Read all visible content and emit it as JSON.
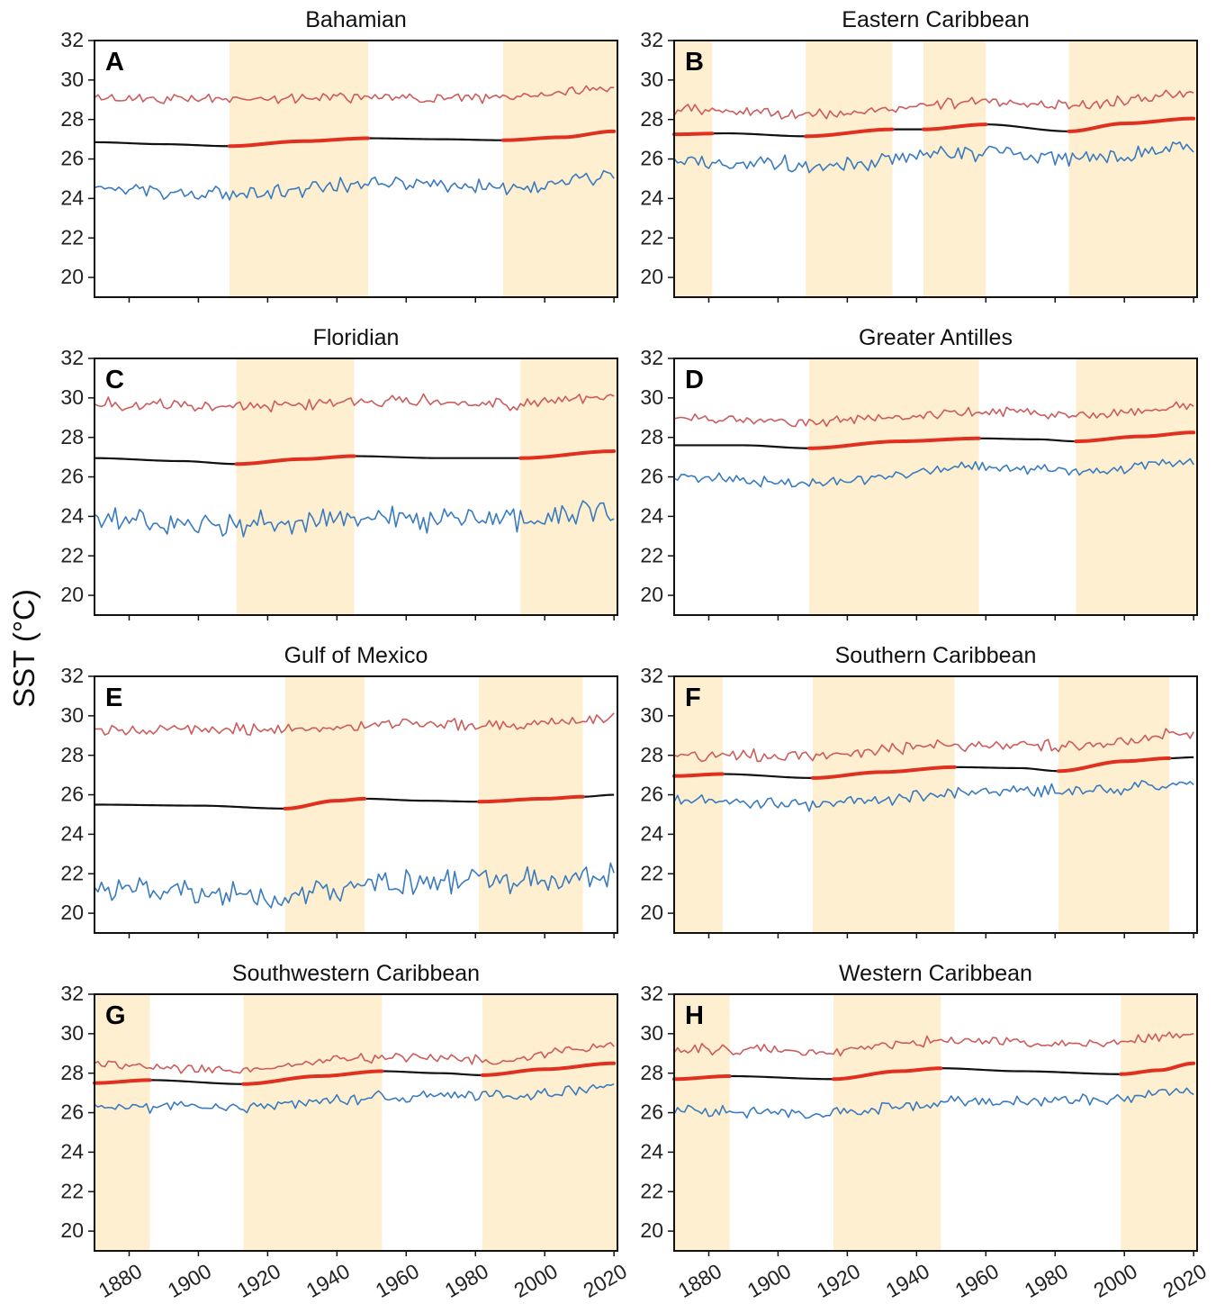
{
  "ylabel": "SST (°C)",
  "colors": {
    "shade": "#fdefcf",
    "max": "#cd5c5c",
    "min": "#3a7bbf",
    "trend": "#111111",
    "trend_highlight": "#e03020",
    "frame": "#111111"
  },
  "chart_data": [
    {
      "type": "line",
      "letter": "A",
      "title": "Bahamian",
      "xlim": [
        1870,
        2021
      ],
      "ylim": [
        19,
        32
      ],
      "yticks": [
        20,
        22,
        24,
        26,
        28,
        30,
        32
      ],
      "xticks": [
        1880,
        1900,
        1920,
        1940,
        1960,
        1980,
        2000,
        2020
      ],
      "shaded_periods": [
        [
          1909,
          1949
        ],
        [
          1988,
          2021
        ]
      ],
      "series": [
        {
          "role": "max",
          "base": [
            [
              1870,
              29.1
            ],
            [
              1900,
              29.0
            ],
            [
              1940,
              29.1
            ],
            [
              1980,
              29.1
            ],
            [
              2020,
              29.5
            ]
          ],
          "amplitude": 0.3
        },
        {
          "role": "trend",
          "points": [
            [
              1870,
              26.85
            ],
            [
              1890,
              26.75
            ],
            [
              1909,
              26.65
            ],
            [
              1930,
              26.9
            ],
            [
              1949,
              27.05
            ],
            [
              1970,
              27.0
            ],
            [
              1988,
              26.95
            ],
            [
              2005,
              27.1
            ],
            [
              2020,
              27.4
            ]
          ]
        },
        {
          "role": "min",
          "base": [
            [
              1870,
              24.5
            ],
            [
              1910,
              24.2
            ],
            [
              1950,
              24.8
            ],
            [
              1990,
              24.6
            ],
            [
              2020,
              25.1
            ]
          ],
          "amplitude": 0.45
        }
      ]
    },
    {
      "type": "line",
      "letter": "B",
      "title": "Eastern Caribbean",
      "xlim": [
        1870,
        2021
      ],
      "ylim": [
        19,
        32
      ],
      "yticks": [
        20,
        22,
        24,
        26,
        28,
        30,
        32
      ],
      "xticks": [
        1880,
        1900,
        1920,
        1940,
        1960,
        1980,
        2000,
        2020
      ],
      "shaded_periods": [
        [
          1870,
          1881
        ],
        [
          1908,
          1933
        ],
        [
          1942,
          1960
        ],
        [
          1984,
          2021
        ]
      ],
      "series": [
        {
          "role": "max",
          "base": [
            [
              1870,
              28.5
            ],
            [
              1910,
              28.3
            ],
            [
              1960,
              28.9
            ],
            [
              1985,
              28.7
            ],
            [
              2020,
              29.3
            ]
          ],
          "amplitude": 0.35
        },
        {
          "role": "trend",
          "points": [
            [
              1870,
              27.25
            ],
            [
              1885,
              27.3
            ],
            [
              1908,
              27.15
            ],
            [
              1933,
              27.5
            ],
            [
              1942,
              27.5
            ],
            [
              1960,
              27.75
            ],
            [
              1984,
              27.4
            ],
            [
              2000,
              27.8
            ],
            [
              2020,
              28.05
            ]
          ]
        },
        {
          "role": "min",
          "base": [
            [
              1870,
              25.8
            ],
            [
              1910,
              25.7
            ],
            [
              1960,
              26.3
            ],
            [
              1990,
              26.0
            ],
            [
              2020,
              26.6
            ]
          ],
          "amplitude": 0.5
        }
      ]
    },
    {
      "type": "line",
      "letter": "C",
      "title": "Floridian",
      "xlim": [
        1870,
        2021
      ],
      "ylim": [
        19,
        32
      ],
      "yticks": [
        20,
        22,
        24,
        26,
        28,
        30,
        32
      ],
      "xticks": [
        1880,
        1900,
        1920,
        1940,
        1960,
        1980,
        2000,
        2020
      ],
      "shaded_periods": [
        [
          1911,
          1945
        ],
        [
          1993,
          2021
        ]
      ],
      "series": [
        {
          "role": "max",
          "base": [
            [
              1870,
              29.7
            ],
            [
              1910,
              29.5
            ],
            [
              1950,
              29.9
            ],
            [
              1990,
              29.7
            ],
            [
              2020,
              30.1
            ]
          ],
          "amplitude": 0.4
        },
        {
          "role": "trend",
          "points": [
            [
              1870,
              26.95
            ],
            [
              1895,
              26.8
            ],
            [
              1911,
              26.65
            ],
            [
              1930,
              26.9
            ],
            [
              1945,
              27.05
            ],
            [
              1970,
              26.95
            ],
            [
              1993,
              26.95
            ],
            [
              2020,
              27.3
            ]
          ]
        },
        {
          "role": "min",
          "base": [
            [
              1870,
              23.8
            ],
            [
              1910,
              23.6
            ],
            [
              1950,
              23.9
            ],
            [
              1990,
              23.8
            ],
            [
              2020,
              24.3
            ]
          ],
          "amplitude": 0.8
        }
      ]
    },
    {
      "type": "line",
      "letter": "D",
      "title": "Greater Antilles",
      "xlim": [
        1870,
        2021
      ],
      "ylim": [
        19,
        32
      ],
      "yticks": [
        20,
        22,
        24,
        26,
        28,
        30,
        32
      ],
      "xticks": [
        1880,
        1900,
        1920,
        1940,
        1960,
        1980,
        2000,
        2020
      ],
      "shaded_periods": [
        [
          1909,
          1958
        ],
        [
          1986,
          2021
        ]
      ],
      "series": [
        {
          "role": "max",
          "base": [
            [
              1870,
              29.0
            ],
            [
              1910,
              28.8
            ],
            [
              1960,
              29.3
            ],
            [
              1986,
              29.1
            ],
            [
              2020,
              29.6
            ]
          ],
          "amplitude": 0.3
        },
        {
          "role": "trend",
          "points": [
            [
              1870,
              27.6
            ],
            [
              1890,
              27.6
            ],
            [
              1909,
              27.45
            ],
            [
              1935,
              27.8
            ],
            [
              1958,
              27.95
            ],
            [
              1975,
              27.9
            ],
            [
              1986,
              27.8
            ],
            [
              2005,
              28.05
            ],
            [
              2020,
              28.25
            ]
          ]
        },
        {
          "role": "min",
          "base": [
            [
              1870,
              26.0
            ],
            [
              1910,
              25.7
            ],
            [
              1960,
              26.5
            ],
            [
              1990,
              26.3
            ],
            [
              2020,
              26.8
            ]
          ],
          "amplitude": 0.35
        }
      ]
    },
    {
      "type": "line",
      "letter": "E",
      "title": "Gulf of Mexico",
      "xlim": [
        1870,
        2021
      ],
      "ylim": [
        19,
        32
      ],
      "yticks": [
        20,
        22,
        24,
        26,
        28,
        30,
        32
      ],
      "xticks": [
        1880,
        1900,
        1920,
        1940,
        1960,
        1980,
        2000,
        2020
      ],
      "shaded_periods": [
        [
          1925,
          1948
        ],
        [
          1981,
          2011
        ]
      ],
      "series": [
        {
          "role": "max",
          "base": [
            [
              1870,
              29.3
            ],
            [
              1920,
              29.3
            ],
            [
              1960,
              29.6
            ],
            [
              1990,
              29.5
            ],
            [
              2020,
              29.9
            ]
          ],
          "amplitude": 0.35
        },
        {
          "role": "trend",
          "points": [
            [
              1870,
              25.5
            ],
            [
              1900,
              25.45
            ],
            [
              1925,
              25.3
            ],
            [
              1940,
              25.7
            ],
            [
              1948,
              25.8
            ],
            [
              1965,
              25.7
            ],
            [
              1981,
              25.65
            ],
            [
              2000,
              25.8
            ],
            [
              2011,
              25.9
            ],
            [
              2020,
              26.0
            ]
          ]
        },
        {
          "role": "min",
          "base": [
            [
              1870,
              21.3
            ],
            [
              1920,
              21.0
            ],
            [
              1960,
              21.6
            ],
            [
              1990,
              21.6
            ],
            [
              2020,
              21.8
            ]
          ],
          "amplitude": 0.8
        }
      ]
    },
    {
      "type": "line",
      "letter": "F",
      "title": "Southern Caribbean",
      "xlim": [
        1870,
        2021
      ],
      "ylim": [
        19,
        32
      ],
      "yticks": [
        20,
        22,
        24,
        26,
        28,
        30,
        32
      ],
      "xticks": [
        1880,
        1900,
        1920,
        1940,
        1960,
        1980,
        2000,
        2020
      ],
      "shaded_periods": [
        [
          1870,
          1884
        ],
        [
          1910,
          1951
        ],
        [
          1981,
          2013
        ]
      ],
      "series": [
        {
          "role": "max",
          "base": [
            [
              1870,
              28.0
            ],
            [
              1910,
              28.0
            ],
            [
              1950,
              28.5
            ],
            [
              1985,
              28.5
            ],
            [
              2020,
              29.1
            ]
          ],
          "amplitude": 0.35
        },
        {
          "role": "trend",
          "points": [
            [
              1870,
              26.95
            ],
            [
              1884,
              27.05
            ],
            [
              1910,
              26.85
            ],
            [
              1930,
              27.15
            ],
            [
              1951,
              27.4
            ],
            [
              1970,
              27.35
            ],
            [
              1981,
              27.2
            ],
            [
              2000,
              27.7
            ],
            [
              2013,
              27.85
            ],
            [
              2020,
              27.9
            ]
          ]
        },
        {
          "role": "min",
          "base": [
            [
              1870,
              25.8
            ],
            [
              1910,
              25.5
            ],
            [
              1960,
              26.2
            ],
            [
              1990,
              26.2
            ],
            [
              2020,
              26.6
            ]
          ],
          "amplitude": 0.4
        }
      ]
    },
    {
      "type": "line",
      "letter": "G",
      "title": "Southwestern Caribbean",
      "xlim": [
        1870,
        2021
      ],
      "ylim": [
        19,
        32
      ],
      "yticks": [
        20,
        22,
        24,
        26,
        28,
        30,
        32
      ],
      "xticks": [
        1880,
        1900,
        1920,
        1940,
        1960,
        1980,
        2000,
        2020
      ],
      "shaded_periods": [
        [
          1870,
          1886
        ],
        [
          1913,
          1953
        ],
        [
          1982,
          2021
        ]
      ],
      "series": [
        {
          "role": "max",
          "base": [
            [
              1870,
              28.4
            ],
            [
              1910,
              28.2
            ],
            [
              1950,
              28.8
            ],
            [
              1985,
              28.7
            ],
            [
              2020,
              29.4
            ]
          ],
          "amplitude": 0.3
        },
        {
          "role": "trend",
          "points": [
            [
              1870,
              27.5
            ],
            [
              1886,
              27.65
            ],
            [
              1913,
              27.45
            ],
            [
              1935,
              27.85
            ],
            [
              1953,
              28.1
            ],
            [
              1970,
              28.0
            ],
            [
              1982,
              27.9
            ],
            [
              2000,
              28.2
            ],
            [
              2020,
              28.5
            ]
          ]
        },
        {
          "role": "min",
          "base": [
            [
              1870,
              26.3
            ],
            [
              1910,
              26.3
            ],
            [
              1960,
              26.8
            ],
            [
              1990,
              26.9
            ],
            [
              2020,
              27.3
            ]
          ],
          "amplitude": 0.35
        }
      ]
    },
    {
      "type": "line",
      "letter": "H",
      "title": "Western Caribbean",
      "xlim": [
        1870,
        2021
      ],
      "ylim": [
        19,
        32
      ],
      "yticks": [
        20,
        22,
        24,
        26,
        28,
        30,
        32
      ],
      "xticks": [
        1880,
        1900,
        1920,
        1940,
        1960,
        1980,
        2000,
        2020
      ],
      "shaded_periods": [
        [
          1870,
          1886
        ],
        [
          1916,
          1947
        ],
        [
          1999,
          2021
        ]
      ],
      "series": [
        {
          "role": "max",
          "base": [
            [
              1870,
              29.2
            ],
            [
              1910,
              29.1
            ],
            [
              1950,
              29.6
            ],
            [
              1990,
              29.5
            ],
            [
              2020,
              30.0
            ]
          ],
          "amplitude": 0.35
        },
        {
          "role": "trend",
          "points": [
            [
              1870,
              27.7
            ],
            [
              1886,
              27.85
            ],
            [
              1916,
              27.7
            ],
            [
              1935,
              28.1
            ],
            [
              1947,
              28.25
            ],
            [
              1970,
              28.1
            ],
            [
              1999,
              27.95
            ],
            [
              2010,
              28.15
            ],
            [
              2020,
              28.5
            ]
          ]
        },
        {
          "role": "min",
          "base": [
            [
              1870,
              26.1
            ],
            [
              1910,
              26.0
            ],
            [
              1960,
              26.6
            ],
            [
              1990,
              26.6
            ],
            [
              2020,
              27.1
            ]
          ],
          "amplitude": 0.35
        }
      ]
    }
  ]
}
